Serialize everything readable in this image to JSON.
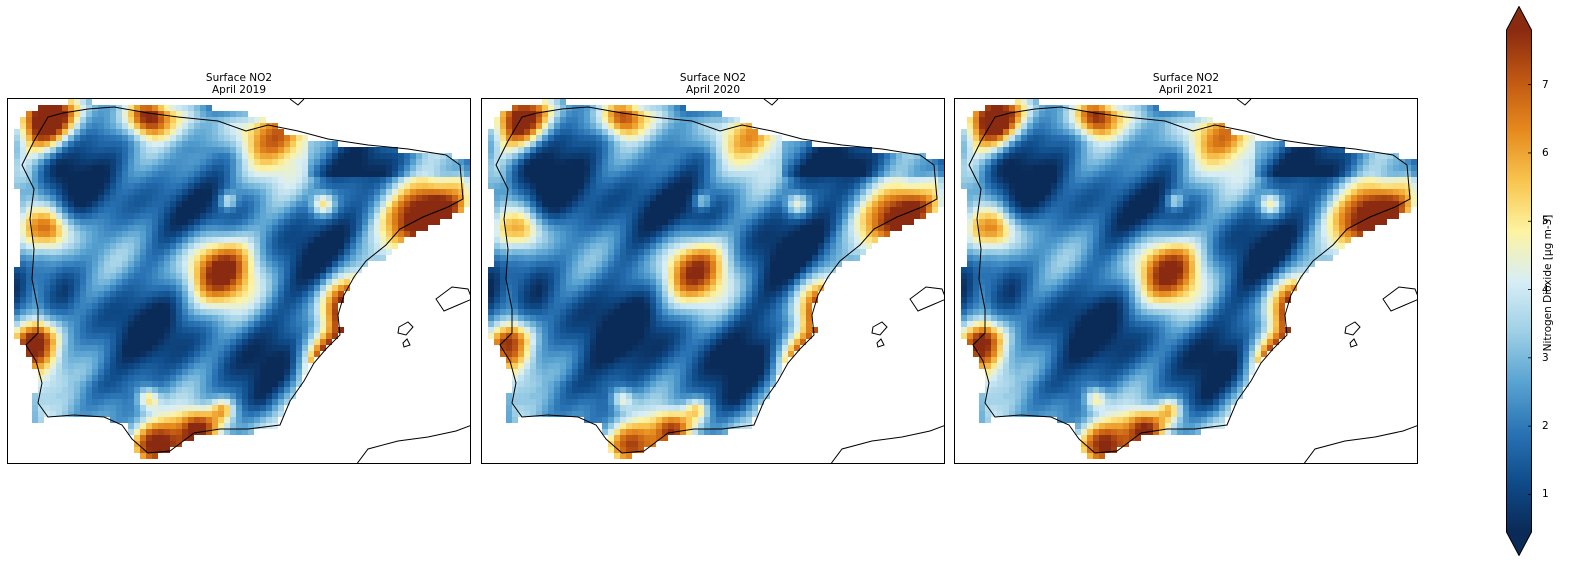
{
  "panels": [
    {
      "title": "Surface NO2",
      "subtitle": "April 2019",
      "madrid": 7.6,
      "coastal": 7.0,
      "background": 1.6
    },
    {
      "title": "Surface NO2",
      "subtitle": "April 2020",
      "madrid": 7.0,
      "coastal": 6.0,
      "background": 1.3
    },
    {
      "title": "Surface NO2",
      "subtitle": "April 2021",
      "madrid": 7.4,
      "coastal": 6.6,
      "background": 1.5
    }
  ],
  "colorbar": {
    "label": "Nitrogen Dioxide [µg m-3]",
    "ticks": [
      "1",
      "2",
      "3",
      "4",
      "5",
      "6",
      "7"
    ],
    "range": [
      0.45,
      7.8
    ],
    "extend": "both",
    "colors": [
      "#0a2a57",
      "#0f4c8a",
      "#2a74b5",
      "#5aa4d2",
      "#9fd0e6",
      "#d8eef6",
      "#fdf3a0",
      "#f8c44e",
      "#e58a1e",
      "#c05812",
      "#8a2a10"
    ]
  }
}
